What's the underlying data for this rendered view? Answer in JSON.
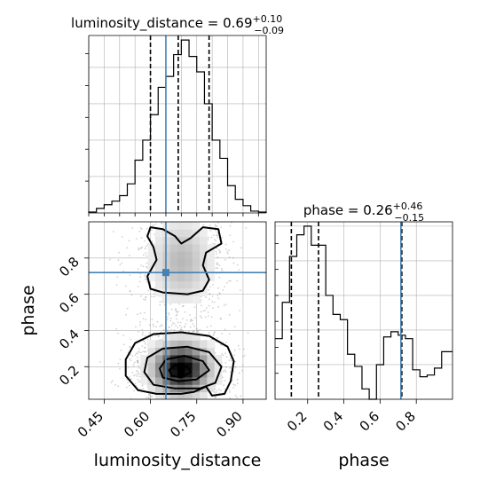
{
  "colors": {
    "truth": "#4682b4",
    "hist": "#000000",
    "quantile": "#000000",
    "grid": "#b0b0b0",
    "density_dark": "#000000",
    "scatter": "#9a9a9a"
  },
  "chart_data": [
    {
      "type": "histogram",
      "panel": "luminosity_distance marginal",
      "title": {
        "name": "luminosity_distance",
        "median": "0.69",
        "plus": "+0.10",
        "minus": "−0.09"
      },
      "bin_edges": [
        0.4,
        0.425,
        0.45,
        0.475,
        0.5,
        0.525,
        0.55,
        0.575,
        0.6,
        0.625,
        0.65,
        0.675,
        0.7,
        0.725,
        0.75,
        0.775,
        0.8,
        0.825,
        0.85,
        0.875,
        0.9,
        0.925,
        0.95,
        0.975
      ],
      "counts": [
        1,
        5,
        9,
        13,
        19,
        32,
        58,
        80,
        108,
        138,
        150,
        174,
        190,
        172,
        155,
        120,
        80,
        60,
        30,
        15,
        8,
        2,
        1
      ],
      "ymax": 195,
      "quantiles": [
        0.6,
        0.69,
        0.79
      ],
      "truth": 0.65,
      "xlim": [
        0.4,
        0.975
      ],
      "grid": true
    },
    {
      "type": "scatter",
      "panel": "2D density luminosity_distance vs phase",
      "xlabel": "luminosity_distance",
      "ylabel": "phase",
      "xlim": [
        0.4,
        0.975
      ],
      "ylim": [
        0.02,
        1.0
      ],
      "xticks": [
        "0.45",
        "0.60",
        "0.75",
        "0.90"
      ],
      "xtick_values": [
        0.45,
        0.6,
        0.75,
        0.9
      ],
      "yticks": [
        "0.2",
        "0.4",
        "0.6",
        "0.8"
      ],
      "ytick_values": [
        0.2,
        0.4,
        0.6,
        0.8
      ],
      "truth": {
        "x": 0.65,
        "y": 0.72
      },
      "modes": [
        {
          "x": 0.7,
          "y": 0.19,
          "sx": 0.055,
          "sy": 0.085,
          "weight": 0.68
        },
        {
          "x": 0.7,
          "y": 0.78,
          "sx": 0.06,
          "sy": 0.14,
          "weight": 0.32
        }
      ],
      "contours": [
        {
          "level": "outer",
          "series": [
            {
              "name": "upper",
              "points": [
                [
                  0.6,
                  0.97
                ],
                [
                  0.64,
                  0.96
                ],
                [
                  0.68,
                  0.92
                ],
                [
                  0.7,
                  0.88
                ],
                [
                  0.73,
                  0.91
                ],
                [
                  0.77,
                  0.97
                ],
                [
                  0.82,
                  0.96
                ],
                [
                  0.83,
                  0.88
                ],
                [
                  0.78,
                  0.83
                ],
                [
                  0.77,
                  0.76
                ],
                [
                  0.79,
                  0.68
                ],
                [
                  0.77,
                  0.62
                ],
                [
                  0.72,
                  0.6
                ],
                [
                  0.64,
                  0.61
                ],
                [
                  0.6,
                  0.63
                ],
                [
                  0.59,
                  0.7
                ],
                [
                  0.62,
                  0.79
                ],
                [
                  0.61,
                  0.86
                ],
                [
                  0.59,
                  0.92
                ],
                [
                  0.6,
                  0.97
                ]
              ]
            },
            {
              "name": "lower",
              "points": [
                [
                  0.52,
                  0.15
                ],
                [
                  0.52,
                  0.24
                ],
                [
                  0.55,
                  0.33
                ],
                [
                  0.61,
                  0.38
                ],
                [
                  0.7,
                  0.39
                ],
                [
                  0.79,
                  0.37
                ],
                [
                  0.85,
                  0.31
                ],
                [
                  0.87,
                  0.23
                ],
                [
                  0.86,
                  0.12
                ],
                [
                  0.84,
                  0.05
                ],
                [
                  0.8,
                  0.04
                ],
                [
                  0.78,
                  0.09
                ],
                [
                  0.74,
                  0.06
                ],
                [
                  0.7,
                  0.05
                ],
                [
                  0.62,
                  0.05
                ],
                [
                  0.56,
                  0.07
                ],
                [
                  0.52,
                  0.15
                ]
              ]
            }
          ]
        },
        {
          "level": "middle",
          "series": [
            {
              "name": "lower",
              "points": [
                [
                  0.58,
                  0.17
                ],
                [
                  0.59,
                  0.25
                ],
                [
                  0.64,
                  0.3
                ],
                [
                  0.72,
                  0.31
                ],
                [
                  0.79,
                  0.28
                ],
                [
                  0.83,
                  0.2
                ],
                [
                  0.81,
                  0.11
                ],
                [
                  0.76,
                  0.08
                ],
                [
                  0.68,
                  0.08
                ],
                [
                  0.61,
                  0.1
                ],
                [
                  0.58,
                  0.17
                ]
              ]
            }
          ]
        },
        {
          "level": "inner",
          "series": [
            {
              "name": "lower",
              "points": [
                [
                  0.63,
                  0.19
                ],
                [
                  0.65,
                  0.24
                ],
                [
                  0.71,
                  0.26
                ],
                [
                  0.77,
                  0.23
                ],
                [
                  0.79,
                  0.18
                ],
                [
                  0.75,
                  0.13
                ],
                [
                  0.69,
                  0.12
                ],
                [
                  0.64,
                  0.14
                ],
                [
                  0.63,
                  0.19
                ]
              ]
            }
          ]
        },
        {
          "level": "core",
          "series": [
            {
              "name": "lower",
              "points": [
                [
                  0.66,
                  0.18
                ],
                [
                  0.68,
                  0.21
                ],
                [
                  0.72,
                  0.2
                ],
                [
                  0.73,
                  0.17
                ],
                [
                  0.7,
                  0.14
                ],
                [
                  0.67,
                  0.15
                ],
                [
                  0.66,
                  0.18
                ]
              ]
            }
          ]
        }
      ],
      "grid": true
    },
    {
      "type": "histogram",
      "panel": "phase marginal",
      "title": {
        "name": "phase",
        "median": "0.26",
        "plus": "+0.46",
        "minus": "−0.15"
      },
      "xlabel": "phase",
      "bin_edges": [
        0.02,
        0.06,
        0.1,
        0.14,
        0.18,
        0.22,
        0.26,
        0.3,
        0.34,
        0.38,
        0.42,
        0.46,
        0.5,
        0.54,
        0.58,
        0.62,
        0.66,
        0.7,
        0.74,
        0.78,
        0.82,
        0.86,
        0.9,
        0.94,
        1.0
      ],
      "counts": [
        70,
        112,
        165,
        190,
        200,
        178,
        178,
        120,
        98,
        92,
        52,
        38,
        12,
        0,
        40,
        72,
        78,
        74,
        70,
        34,
        26,
        28,
        36,
        55
      ],
      "ymax": 205,
      "quantiles": [
        0.11,
        0.26,
        0.72
      ],
      "truth": 0.715,
      "xlim": [
        0.02,
        1.0
      ],
      "xticks": [
        "0.2",
        "0.4",
        "0.6",
        "0.8"
      ],
      "xtick_values": [
        0.2,
        0.4,
        0.6,
        0.8
      ],
      "grid": true
    }
  ]
}
